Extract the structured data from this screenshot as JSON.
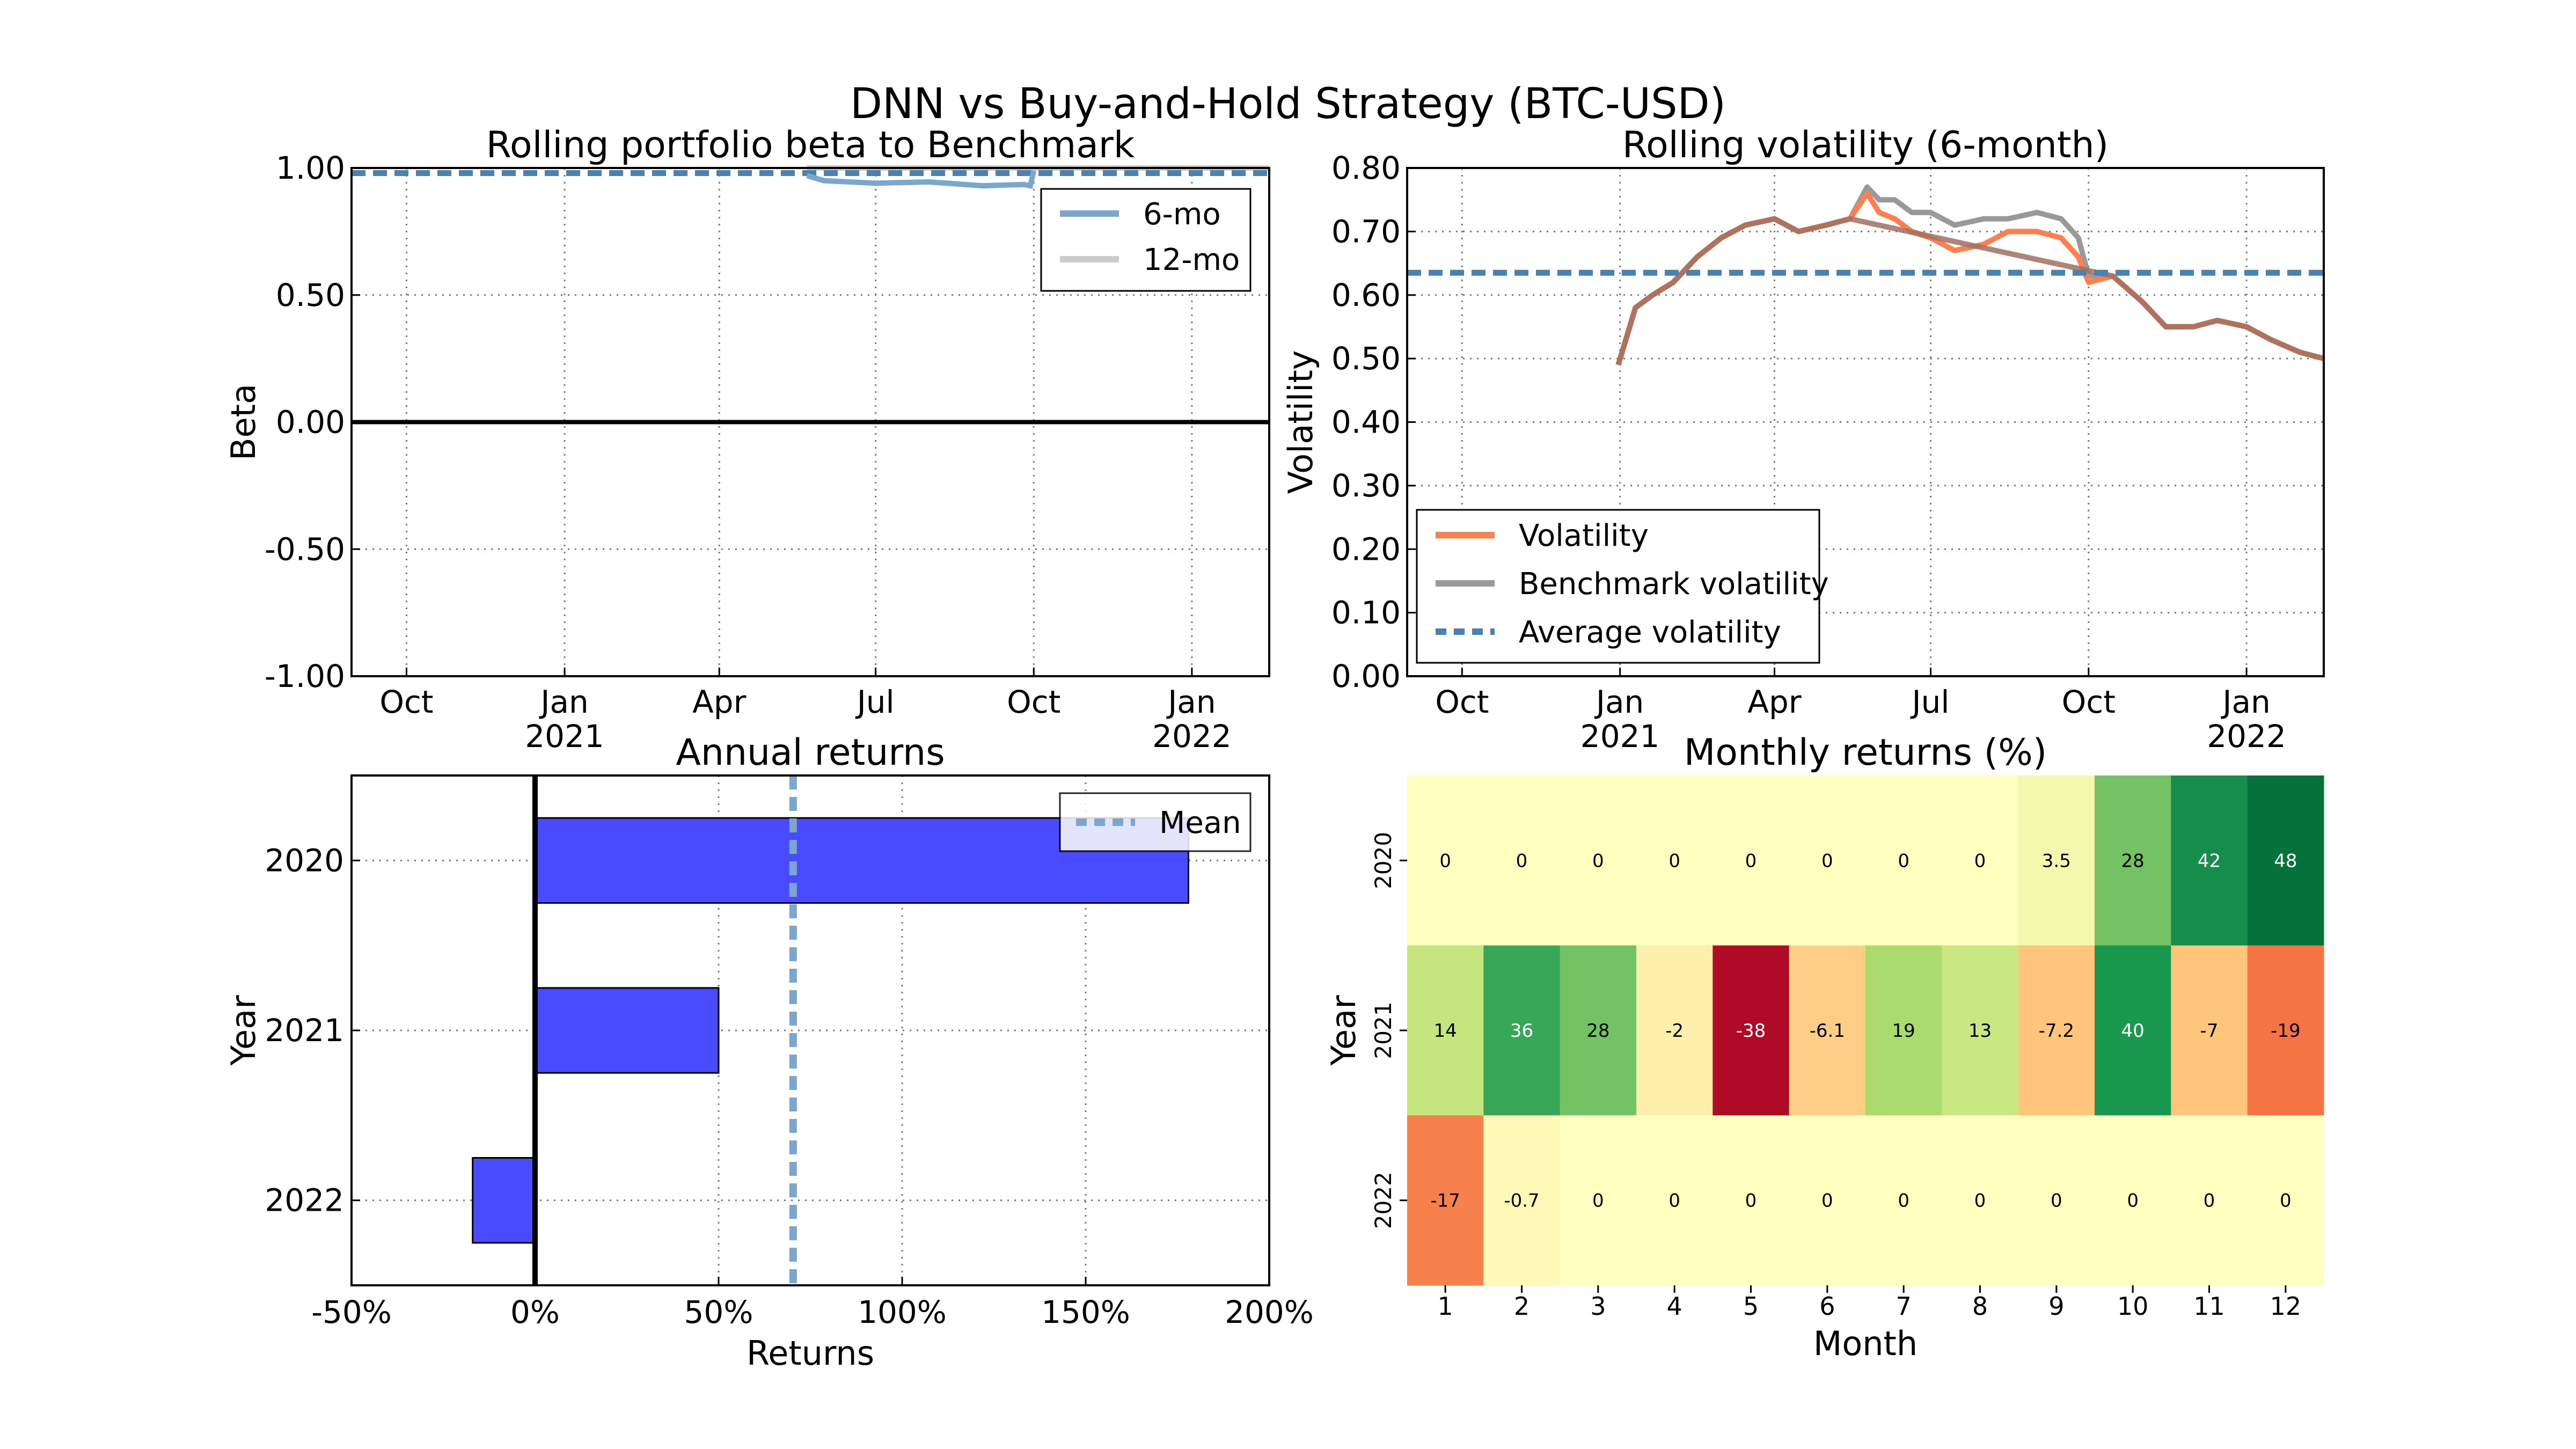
{
  "suptitle": "DNN vs Buy-and-Hold Strategy (BTC-USD)",
  "colors": {
    "beta_6mo": "#7aa6cf",
    "beta_12mo": "#cccccc",
    "beta_avg": "#4682b4",
    "volatility": "#ff7f50",
    "benchmark_volatility": "#999999",
    "average_volatility": "#4682b4",
    "bar": "#4a4aff",
    "mean_line": "#7aa6cf"
  },
  "chart_data": [
    {
      "id": "beta",
      "type": "line",
      "title": "Rolling portfolio beta to Benchmark",
      "ylabel": "Beta",
      "ylim": [
        -1.0,
        1.0
      ],
      "yticks": [
        "1.00",
        "0.50",
        "0.00",
        "-0.50",
        "-1.00"
      ],
      "ytick_values": [
        1.0,
        0.5,
        0.0,
        -0.5,
        -1.0
      ],
      "xlim": [
        "2020-08-30",
        "2022-02-15"
      ],
      "xticks": [
        {
          "date": "2020-10-01",
          "label": "Oct",
          "sub": ""
        },
        {
          "date": "2021-01-01",
          "label": "Jan",
          "sub": "2021"
        },
        {
          "date": "2021-04-01",
          "label": "Apr",
          "sub": ""
        },
        {
          "date": "2021-07-01",
          "label": "Jul",
          "sub": ""
        },
        {
          "date": "2021-10-01",
          "label": "Oct",
          "sub": ""
        },
        {
          "date": "2022-01-01",
          "label": "Jan",
          "sub": "2022"
        }
      ],
      "grid": true,
      "legend_position": "upper right",
      "series": [
        {
          "name": "6-mo",
          "x": [
            "2021-05-22",
            "2021-06-01",
            "2021-07-01",
            "2021-08-01",
            "2021-09-01",
            "2021-09-25",
            "2021-09-29",
            "2021-10-01"
          ],
          "y": [
            0.97,
            0.95,
            0.94,
            0.945,
            0.93,
            0.935,
            0.93,
            0.99
          ]
        },
        {
          "name": "12-mo",
          "x": [
            "2021-05-22",
            "2022-02-15"
          ],
          "y": [
            1.0,
            1.0
          ]
        },
        {
          "name": "",
          "x": [
            "2020-08-30",
            "2022-02-15"
          ],
          "y": [
            0.98,
            0.98
          ]
        }
      ]
    },
    {
      "id": "volatility",
      "type": "line",
      "title": "Rolling volatility (6-month)",
      "ylabel": "Volatility",
      "ylim": [
        0.0,
        0.8
      ],
      "yticks": [
        "0.80",
        "0.70",
        "0.60",
        "0.50",
        "0.40",
        "0.30",
        "0.20",
        "0.10",
        "0.00"
      ],
      "ytick_values": [
        0.8,
        0.7,
        0.6,
        0.5,
        0.4,
        0.3,
        0.2,
        0.1,
        0.0
      ],
      "xlim": [
        "2020-08-30",
        "2022-02-15"
      ],
      "xticks": [
        {
          "date": "2020-10-01",
          "label": "Oct",
          "sub": ""
        },
        {
          "date": "2021-01-01",
          "label": "Jan",
          "sub": "2021"
        },
        {
          "date": "2021-04-01",
          "label": "Apr",
          "sub": ""
        },
        {
          "date": "2021-07-01",
          "label": "Jul",
          "sub": ""
        },
        {
          "date": "2021-10-01",
          "label": "Oct",
          "sub": ""
        },
        {
          "date": "2022-01-01",
          "label": "Jan",
          "sub": "2022"
        }
      ],
      "grid": true,
      "legend_position": "lower left",
      "series": [
        {
          "name": "Volatility",
          "x": [
            "2020-12-31",
            "2021-01-10",
            "2021-01-20",
            "2021-02-01",
            "2021-02-15",
            "2021-03-01",
            "2021-03-15",
            "2021-04-01",
            "2021-04-15",
            "2021-05-01",
            "2021-05-15",
            "2021-05-25",
            "2021-06-01",
            "2021-06-10",
            "2021-06-20",
            "2021-07-01",
            "2021-07-15",
            "2021-08-01",
            "2021-08-15",
            "2021-09-01",
            "2021-09-15",
            "2021-09-25",
            "2021-10-01",
            "2021-10-15",
            "2021-11-01",
            "2021-11-15",
            "2021-12-01",
            "2021-12-15",
            "2022-01-01",
            "2022-01-15",
            "2022-02-01",
            "2022-02-15"
          ],
          "y": [
            0.49,
            0.58,
            0.6,
            0.62,
            0.66,
            0.69,
            0.71,
            0.72,
            0.7,
            0.71,
            0.72,
            0.76,
            0.73,
            0.72,
            0.7,
            0.69,
            0.67,
            0.68,
            0.7,
            0.7,
            0.69,
            0.66,
            0.62,
            0.63,
            0.59,
            0.55,
            0.55,
            0.56,
            0.55,
            0.53,
            0.51,
            0.5
          ]
        },
        {
          "name": "Benchmark volatility",
          "x": [
            "2020-12-31",
            "2021-01-10",
            "2021-01-20",
            "2021-02-01",
            "2021-02-15",
            "2021-03-01",
            "2021-03-15",
            "2021-04-01",
            "2021-04-15",
            "2021-05-01",
            "2021-05-15",
            "2021-05-25",
            "2021-06-01",
            "2021-06-10",
            "2021-06-20",
            "2021-07-01",
            "2021-07-15",
            "2021-08-01",
            "2021-08-15",
            "2021-09-01",
            "2021-09-15",
            "2021-09-25",
            "2021-10-01",
            "2021-10-15",
            "2021-11-01",
            "2021-11-15",
            "2021-12-01",
            "2021-12-15",
            "2022-01-01",
            "2022-01-15",
            "2022-02-01",
            "2022-02-15"
          ],
          "y": [
            0.49,
            0.58,
            0.6,
            0.62,
            0.66,
            0.69,
            0.71,
            0.72,
            0.7,
            0.71,
            0.72,
            0.77,
            0.75,
            0.75,
            0.73,
            0.73,
            0.71,
            0.72,
            0.72,
            0.73,
            0.72,
            0.69,
            0.63,
            0.63,
            0.59,
            0.55,
            0.55,
            0.56,
            0.55,
            0.53,
            0.51,
            0.5
          ]
        },
        {
          "name": "Average volatility",
          "x": [
            "2020-08-30",
            "2022-02-15"
          ],
          "y": [
            0.635,
            0.635
          ]
        }
      ]
    },
    {
      "id": "annual",
      "type": "bar",
      "orientation": "horizontal",
      "title": "Annual returns",
      "xlabel": "Returns",
      "ylabel": "Year",
      "xlim": [
        -50,
        200
      ],
      "xticks": [
        "-50%",
        "0%",
        "50%",
        "100%",
        "150%",
        "200%"
      ],
      "xtick_values": [
        -50,
        0,
        50,
        100,
        150,
        200
      ],
      "categories": [
        "2020",
        "2021",
        "2022"
      ],
      "values": [
        178,
        50,
        -17
      ],
      "mean": 70.3,
      "legend": [
        "Mean"
      ],
      "legend_position": "upper right",
      "grid": true
    },
    {
      "id": "monthly",
      "type": "heatmap",
      "title": "Monthly returns (%)",
      "xlabel": "Month",
      "ylabel": "Year",
      "columns": [
        "1",
        "2",
        "3",
        "4",
        "5",
        "6",
        "7",
        "8",
        "9",
        "10",
        "11",
        "12"
      ],
      "rows": [
        "2020",
        "2021",
        "2022"
      ],
      "values": [
        [
          0,
          0,
          0,
          0,
          0,
          0,
          0,
          0,
          3.5,
          28,
          42,
          48
        ],
        [
          14,
          36,
          28,
          -2,
          -38,
          -6.1,
          19,
          13,
          -7.2,
          40,
          -7,
          -19
        ],
        [
          -17,
          -0.7,
          0,
          0,
          0,
          0,
          0,
          0,
          0,
          0,
          0,
          0
        ]
      ],
      "labels": [
        [
          "0",
          "0",
          "0",
          "0",
          "0",
          "0",
          "0",
          "0",
          "3.5",
          "28",
          "42",
          "48"
        ],
        [
          "14",
          "36",
          "28",
          "-2",
          "-38",
          "-6.1",
          "19",
          "13",
          "-7.2",
          "40",
          "-7",
          "-19"
        ],
        [
          "-17",
          "-0.7",
          "0",
          "0",
          "0",
          "0",
          "0",
          "0",
          "0",
          "0",
          "0",
          "0"
        ]
      ],
      "colormap": "RdYlGn",
      "vmin": -40,
      "vmax": 50
    }
  ]
}
